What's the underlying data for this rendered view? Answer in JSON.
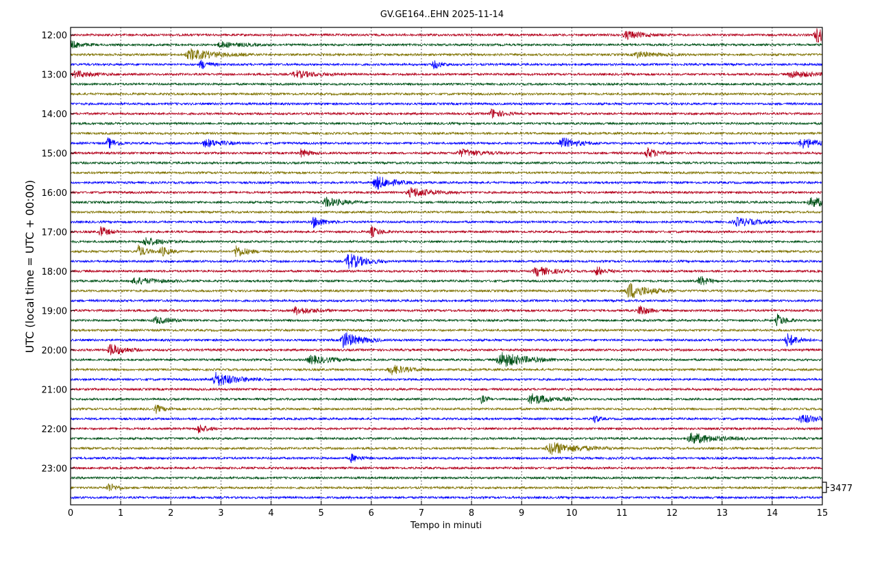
{
  "chart_data": {
    "type": "line",
    "title": "GV.GE164..EHN 2025-11-14",
    "xlabel": "Tempo in minuti",
    "ylabel": "UTC (local time = UTC + 00:00)",
    "xlim": [
      0,
      15
    ],
    "x_ticks": [
      "0",
      "1",
      "2",
      "3",
      "4",
      "5",
      "6",
      "7",
      "8",
      "9",
      "10",
      "11",
      "12",
      "13",
      "14",
      "15"
    ],
    "y_tick_labels": [
      "12:00",
      "13:00",
      "14:00",
      "15:00",
      "16:00",
      "17:00",
      "18:00",
      "19:00",
      "20:00",
      "21:00",
      "22:00",
      "23:00"
    ],
    "trace_count": 48,
    "trace_interval_minutes": 15,
    "trace_colors": [
      "#b3001b",
      "#005218",
      "#7f7200",
      "#0000ff"
    ],
    "scale_label": "3477",
    "grid": "vertical dotted every minute",
    "events": [
      [
        0,
        11.1,
        6,
        0.3
      ],
      [
        0,
        14.9,
        11,
        0.3
      ],
      [
        1,
        0.0,
        6,
        0.2
      ],
      [
        1,
        3.0,
        4,
        0.4
      ],
      [
        2,
        2.4,
        8,
        0.5
      ],
      [
        2,
        11.3,
        4,
        0.4
      ],
      [
        3,
        2.6,
        7,
        0.15
      ],
      [
        3,
        7.25,
        6,
        0.15
      ],
      [
        4,
        0.1,
        5,
        0.3
      ],
      [
        4,
        4.5,
        5,
        0.4
      ],
      [
        4,
        14.4,
        5,
        0.4
      ],
      [
        8,
        8.4,
        7,
        0.2
      ],
      [
        11,
        0.75,
        8,
        0.15
      ],
      [
        11,
        2.7,
        6,
        0.3
      ],
      [
        11,
        9.8,
        8,
        0.3
      ],
      [
        11,
        14.6,
        7,
        0.4
      ],
      [
        12,
        4.6,
        6,
        0.15
      ],
      [
        12,
        7.8,
        5,
        0.4
      ],
      [
        12,
        11.5,
        8,
        0.2
      ],
      [
        15,
        6.1,
        10,
        0.3
      ],
      [
        16,
        6.8,
        7,
        0.4
      ],
      [
        17,
        5.1,
        7,
        0.3
      ],
      [
        17,
        14.8,
        7,
        0.4
      ],
      [
        19,
        4.85,
        8,
        0.2
      ],
      [
        19,
        13.3,
        6,
        0.4
      ],
      [
        20,
        0.6,
        8,
        0.15
      ],
      [
        20,
        6.0,
        8,
        0.15
      ],
      [
        21,
        1.5,
        6,
        0.3
      ],
      [
        22,
        1.35,
        9,
        0.15
      ],
      [
        22,
        1.8,
        8,
        0.15
      ],
      [
        22,
        3.3,
        9,
        0.2
      ],
      [
        23,
        5.55,
        12,
        0.3
      ],
      [
        24,
        9.3,
        7,
        0.3
      ],
      [
        24,
        10.5,
        7,
        0.15
      ],
      [
        25,
        1.3,
        5,
        0.4
      ],
      [
        25,
        12.55,
        8,
        0.15
      ],
      [
        26,
        11.15,
        12,
        0.35
      ],
      [
        28,
        4.5,
        6,
        0.3
      ],
      [
        28,
        11.35,
        9,
        0.15
      ],
      [
        29,
        1.7,
        5,
        0.3
      ],
      [
        29,
        14.1,
        9,
        0.15
      ],
      [
        31,
        5.45,
        12,
        0.3
      ],
      [
        31,
        14.3,
        10,
        0.2
      ],
      [
        32,
        0.8,
        9,
        0.25
      ],
      [
        33,
        8.6,
        11,
        0.45
      ],
      [
        33,
        4.8,
        6,
        0.4
      ],
      [
        34,
        6.4,
        7,
        0.3
      ],
      [
        35,
        2.9,
        10,
        0.4
      ],
      [
        37,
        8.2,
        6,
        0.1
      ],
      [
        37,
        9.2,
        8,
        0.35
      ],
      [
        38,
        1.7,
        6,
        0.15
      ],
      [
        39,
        10.45,
        6,
        0.1
      ],
      [
        39,
        14.6,
        6,
        0.4
      ],
      [
        40,
        2.55,
        7,
        0.15
      ],
      [
        41,
        12.4,
        8,
        0.45
      ],
      [
        42,
        9.6,
        9,
        0.5
      ],
      [
        43,
        5.6,
        6,
        0.15
      ],
      [
        46,
        0.75,
        7,
        0.15
      ]
    ]
  }
}
